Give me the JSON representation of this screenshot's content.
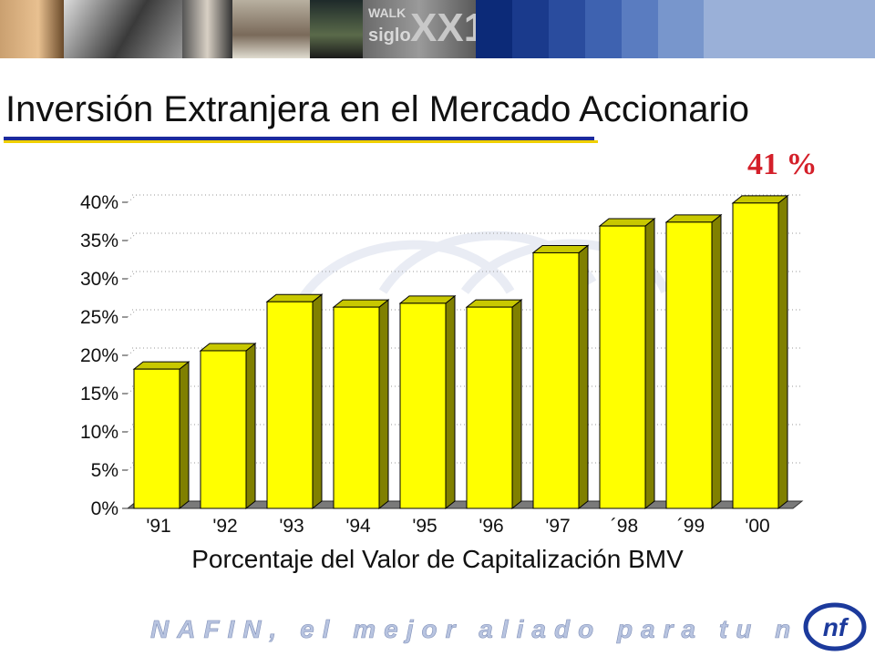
{
  "banner": {
    "text_walk": "WALK",
    "text_siglo": "siglo",
    "text_xxi": "XX1"
  },
  "slide": {
    "title": "Inversión Extranjera en el Mercado Accionario",
    "callout": "41 %",
    "caption": "Porcentaje del Valor de Capitalización  BMV"
  },
  "footer": {
    "slogan": "NAFIN, el mejor aliado para tu negocio",
    "logo_label": "nafin-logo"
  },
  "colors": {
    "bar_front": "#ffff00",
    "bar_side": "#808000",
    "callout": "#d4202a",
    "title_rule": "#1c2a9c",
    "title_rule_accent": "#f0d000"
  },
  "chart_data": {
    "type": "bar",
    "categories": [
      "'91",
      "'92",
      "'93",
      "'94",
      "'95",
      "'96",
      "'97",
      "´98",
      "´99",
      "'00"
    ],
    "values": [
      18.2,
      20.6,
      27.0,
      26.3,
      26.8,
      26.3,
      33.4,
      36.9,
      37.4,
      39.9
    ],
    "y_ticks": [
      "0%",
      "5%",
      "10%",
      "15%",
      "20%",
      "25%",
      "30%",
      "35%",
      "40%"
    ],
    "ylim": [
      0,
      40
    ],
    "grid": true,
    "bar_style": "3d",
    "title": "",
    "xlabel": "Porcentaje del Valor de Capitalización  BMV",
    "ylabel": ""
  }
}
